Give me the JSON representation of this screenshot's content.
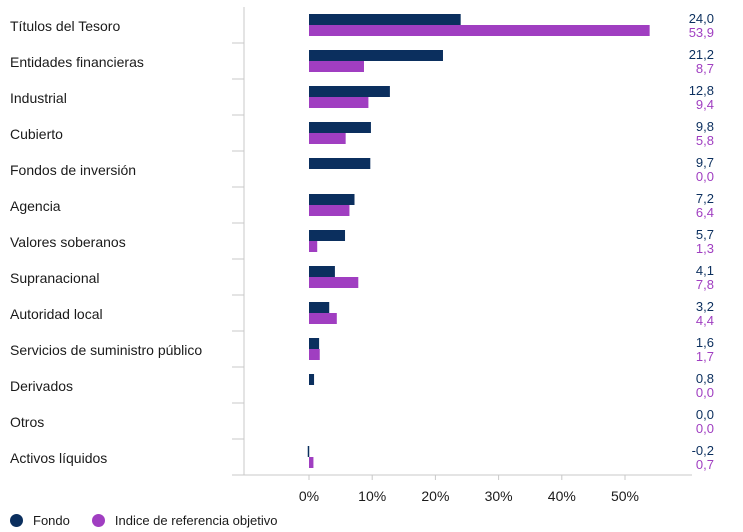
{
  "chart_data": {
    "type": "bar",
    "orientation": "horizontal",
    "categories": [
      "Títulos del Tesoro",
      "Entidades financieras",
      "Industrial",
      "Cubierto",
      "Fondos de inversión",
      "Agencia",
      "Valores soberanos",
      "Supranacional",
      "Autoridad local",
      "Servicios de suministro público",
      "Derivados",
      "Otros",
      "Activos líquidos"
    ],
    "series": [
      {
        "name": "Fondo",
        "color": "#0b2f5e",
        "values": [
          24.0,
          21.2,
          12.8,
          9.8,
          9.7,
          7.2,
          5.7,
          4.1,
          3.2,
          1.6,
          0.8,
          0.0,
          -0.2
        ],
        "labels": [
          "24,0",
          "21,2",
          "12,8",
          "9,8",
          "9,7",
          "7,2",
          "5,7",
          "4,1",
          "3,2",
          "1,6",
          "0,8",
          "0,0",
          "-0,2"
        ]
      },
      {
        "name": "Indice de referencia objetivo",
        "color": "#a03ec1",
        "values": [
          53.9,
          8.7,
          9.4,
          5.8,
          0.0,
          6.4,
          1.3,
          7.8,
          4.4,
          1.7,
          0.0,
          0.0,
          0.7
        ],
        "labels": [
          "53,9",
          "8,7",
          "9,4",
          "5,8",
          "0,0",
          "6,4",
          "1,3",
          "7,8",
          "4,4",
          "1,7",
          "0,0",
          "0,0",
          "0,7"
        ]
      }
    ],
    "xticks": [
      0,
      10,
      20,
      30,
      40,
      50
    ],
    "xtick_labels": [
      "0%",
      "10%",
      "20%",
      "30%",
      "40%",
      "50%"
    ],
    "xlim": [
      -10,
      60
    ],
    "grid": false,
    "legend_position": "bottom-left"
  }
}
